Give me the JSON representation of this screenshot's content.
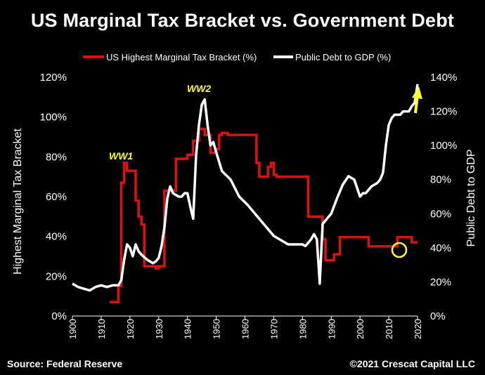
{
  "title": "US Marginal Tax Bracket vs. Government Debt",
  "footer": {
    "source": "Source: Federal Reserve",
    "credit": "©2021 Crescat Capital LLC"
  },
  "colors": {
    "tax": "#e01010",
    "debt": "#ffffff",
    "highlight": "#ffff33",
    "background": "#000000"
  },
  "chart_data": {
    "type": "line",
    "title": "US Marginal Tax Bracket vs. Government Debt",
    "xlabel": "",
    "ylabel": "Highest Marginal Tax Bracket",
    "ylabel_right": "Public Debt to GDP",
    "xlim": [
      1900,
      2020
    ],
    "ylim": [
      0,
      120
    ],
    "ylim_right": [
      0,
      140
    ],
    "x_ticks": [
      "1900",
      "1910",
      "1920",
      "1930",
      "1940",
      "1950",
      "1960",
      "1970",
      "1980",
      "1990",
      "2000",
      "2010",
      "2020"
    ],
    "y_ticks_left": [
      "0%",
      "20%",
      "40%",
      "60%",
      "80%",
      "100%",
      "120%"
    ],
    "y_ticks_right": [
      "0%",
      "20%",
      "40%",
      "60%",
      "80%",
      "100%",
      "120%",
      "140%"
    ],
    "legend": [
      "US Highest Marginal Tax Bracket (%)",
      "Public Debt to GDP (%)"
    ],
    "annotations": [
      "WW1",
      "WW2"
    ],
    "series": [
      {
        "name": "US Highest Marginal Tax Bracket (%)",
        "axis": "left",
        "x": [
          1913,
          1915,
          1916,
          1917,
          1918,
          1919,
          1922,
          1923,
          1924,
          1925,
          1929,
          1930,
          1931,
          1932,
          1935,
          1936,
          1940,
          1941,
          1942,
          1944,
          1946,
          1948,
          1950,
          1951,
          1952,
          1954,
          1964,
          1965,
          1968,
          1969,
          1970,
          1971,
          1982,
          1987,
          1988,
          1991,
          1993,
          2003,
          2013,
          2018,
          2020
        ],
        "y": [
          7,
          7,
          15,
          67,
          77,
          73,
          58,
          50,
          46,
          25,
          24,
          25,
          25,
          63,
          63,
          79,
          81,
          81,
          88,
          94,
          91,
          82,
          84,
          91,
          92,
          91,
          77,
          70,
          75,
          77,
          71,
          70,
          50,
          38.5,
          28,
          31,
          39.6,
          35,
          39.6,
          37,
          37
        ]
      },
      {
        "name": "Public Debt to GDP (%)",
        "axis": "right",
        "x": [
          1900,
          1902,
          1904,
          1906,
          1908,
          1910,
          1912,
          1914,
          1916,
          1917,
          1918,
          1919,
          1920,
          1921,
          1922,
          1923,
          1924,
          1926,
          1928,
          1929,
          1930,
          1931,
          1932,
          1933,
          1934,
          1935,
          1936,
          1937,
          1938,
          1939,
          1940,
          1941,
          1942,
          1943,
          1944,
          1945,
          1946,
          1947,
          1948,
          1949,
          1950,
          1952,
          1955,
          1958,
          1961,
          1965,
          1970,
          1975,
          1980,
          1981,
          1982,
          1983,
          1984,
          1985,
          1986,
          1987,
          1988,
          1989,
          1990,
          1992,
          1994,
          1996,
          1998,
          2000,
          2001,
          2002,
          2004,
          2006,
          2007,
          2008,
          2009,
          2010,
          2011,
          2012,
          2013,
          2014,
          2015,
          2016,
          2017,
          2018,
          2019,
          2020
        ],
        "y": [
          19,
          17,
          16,
          15,
          17,
          18,
          17,
          18,
          18,
          21,
          33,
          42,
          40,
          35,
          42,
          38,
          36,
          33,
          31,
          32,
          34,
          41,
          52,
          69,
          76,
          72,
          71,
          70,
          70,
          72,
          72,
          64,
          57,
          94,
          112,
          124,
          127,
          112,
          100,
          102,
          96,
          85,
          80,
          70,
          65,
          57,
          47,
          42,
          42,
          41,
          43,
          45,
          48,
          45,
          19,
          54,
          56,
          58,
          60,
          69,
          77,
          82,
          80,
          70,
          72,
          72,
          76,
          78,
          80,
          84,
          100,
          112,
          116,
          118,
          118,
          118,
          120,
          120,
          120,
          123,
          125,
          136
        ]
      }
    ]
  }
}
